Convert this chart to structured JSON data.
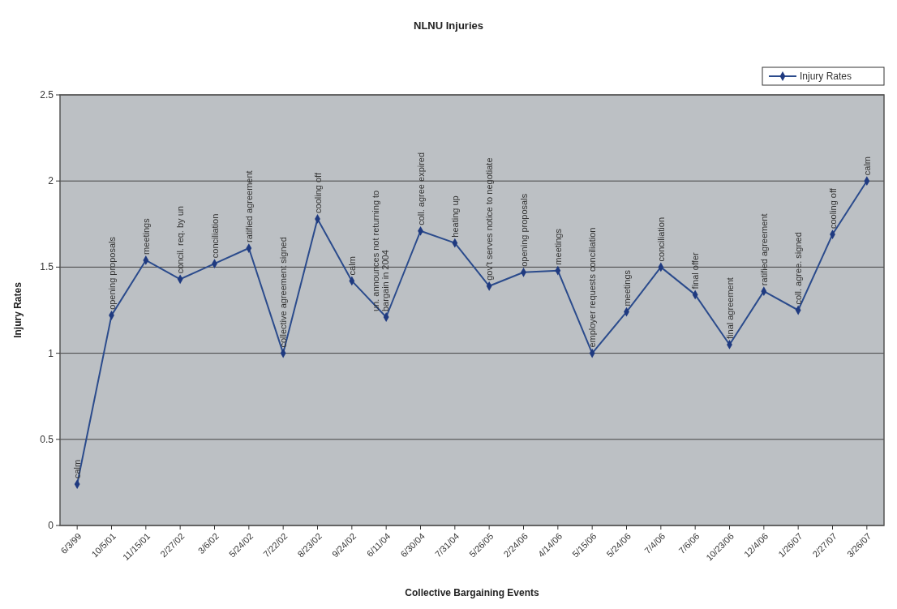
{
  "chart_data": {
    "type": "line",
    "title": "NLNU Injuries",
    "xlabel": "Collective Bargaining Events",
    "ylabel": "Injury Rates",
    "categories": [
      "6/3/99",
      "10/5/01",
      "11/15/01",
      "2/27/02",
      "3/6/02",
      "5/24/02",
      "7/22/02",
      "8/23/02",
      "9/24/02",
      "6/11/04",
      "6/30/04",
      "7/31/04",
      "5/26/05",
      "2/24/06",
      "4/14/06",
      "5/15/06",
      "5/24/06",
      "7/4/06",
      "7/6/06",
      "10/23/06",
      "12/4/06",
      "1/26/07",
      "2/27/07",
      "3/26/07"
    ],
    "series": [
      {
        "name": "Injury Rates",
        "color": "#2b4b8c",
        "values": [
          0.24,
          1.22,
          1.54,
          1.43,
          1.52,
          1.61,
          1.0,
          1.78,
          1.42,
          1.21,
          1.71,
          1.64,
          1.39,
          1.47,
          1.48,
          1.0,
          1.24,
          1.5,
          1.34,
          1.05,
          1.36,
          1.25,
          1.69,
          2.0
        ]
      }
    ],
    "ylim": [
      0,
      2.5
    ],
    "yticks": [
      0,
      0.5,
      1,
      1.5,
      2,
      2.5
    ],
    "grid": "y",
    "legend": "top right",
    "marker": "diamond",
    "line_style": "solid",
    "annotations": [
      {
        "text": "calm",
        "x": "6/3/99",
        "y": 0.24
      },
      {
        "text": "opening proposals",
        "x": "10/5/01",
        "y": 1.22
      },
      {
        "text": "meetings",
        "x": "11/15/01",
        "y": 1.54
      },
      {
        "text": "concil. req. by un",
        "x": "2/27/02",
        "y": 1.43
      },
      {
        "text": "conciliation",
        "x": "3/6/02",
        "y": 1.52
      },
      {
        "text": "ratified agreement",
        "x": "5/24/02",
        "y": 1.61
      },
      {
        "text": "collective agreement signed",
        "x": "7/22/02",
        "y": 1.0
      },
      {
        "text": "cooling off",
        "x": "8/23/02",
        "y": 1.78
      },
      {
        "text": "calm",
        "x": "9/24/02",
        "y": 1.42
      },
      {
        "text": "un. announces not returning to\nbargain in 2004",
        "x": "6/11/04",
        "y": 1.21
      },
      {
        "text": "coll. agree expired",
        "x": "6/30/04",
        "y": 1.71
      },
      {
        "text": "heating up",
        "x": "7/31/04",
        "y": 1.64
      },
      {
        "text": "gov't serves notice to negotiate",
        "x": "5/26/05",
        "y": 1.39
      },
      {
        "text": "opening proposals",
        "x": "2/24/06",
        "y": 1.47
      },
      {
        "text": "meetings",
        "x": "4/14/06",
        "y": 1.48
      },
      {
        "text": "employer requests conciliation",
        "x": "5/15/06",
        "y": 1.0
      },
      {
        "text": "meetings",
        "x": "5/24/06",
        "y": 1.24
      },
      {
        "text": "conciliation",
        "x": "7/4/06",
        "y": 1.5
      },
      {
        "text": "final offer",
        "x": "7/6/06",
        "y": 1.34
      },
      {
        "text": "final agreement",
        "x": "10/23/06",
        "y": 1.05
      },
      {
        "text": "ratified agreement",
        "x": "12/4/06",
        "y": 1.36
      },
      {
        "text": "coll. agree. signed",
        "x": "1/26/07",
        "y": 1.25
      },
      {
        "text": "cooling off",
        "x": "2/27/07",
        "y": 1.69
      },
      {
        "text": "calm",
        "x": "3/26/07",
        "y": 2.0
      }
    ]
  }
}
